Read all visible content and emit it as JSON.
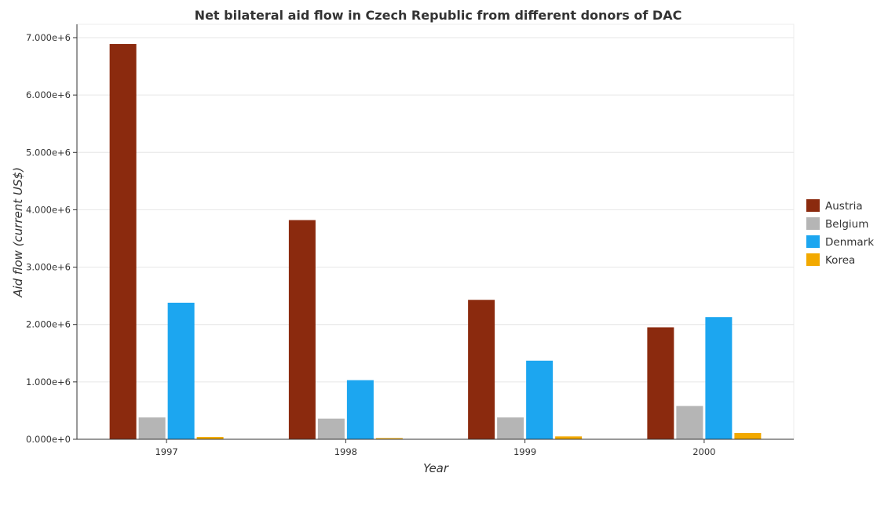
{
  "chart_data": {
    "type": "bar",
    "title": "Net bilateral aid flow in Czech Republic from different donors of DAC",
    "xlabel": "Year",
    "ylabel": "Aid flow (current US$)",
    "categories": [
      "1997",
      "1998",
      "1999",
      "2000"
    ],
    "ylim": [
      0,
      7000000
    ],
    "yticks": [
      0,
      1000000,
      2000000,
      3000000,
      4000000,
      5000000,
      6000000,
      7000000
    ],
    "ytick_labels": [
      "0.000e+0",
      "1.000e+6",
      "2.000e+6",
      "3.000e+6",
      "4.000e+6",
      "5.000e+6",
      "6.000e+6",
      "7.000e+6"
    ],
    "grid": true,
    "legend_position": "right",
    "series": [
      {
        "name": "Austria",
        "color": "#8B2A0E",
        "values": [
          6890000,
          3820000,
          2430000,
          1950000
        ]
      },
      {
        "name": "Belgium",
        "color": "#B5B5B5",
        "values": [
          380000,
          360000,
          380000,
          580000
        ]
      },
      {
        "name": "Denmark",
        "color": "#1CA6F0",
        "values": [
          2380000,
          1030000,
          1370000,
          2130000
        ]
      },
      {
        "name": "Korea",
        "color": "#F2A900",
        "values": [
          40000,
          20000,
          50000,
          110000
        ]
      }
    ]
  }
}
